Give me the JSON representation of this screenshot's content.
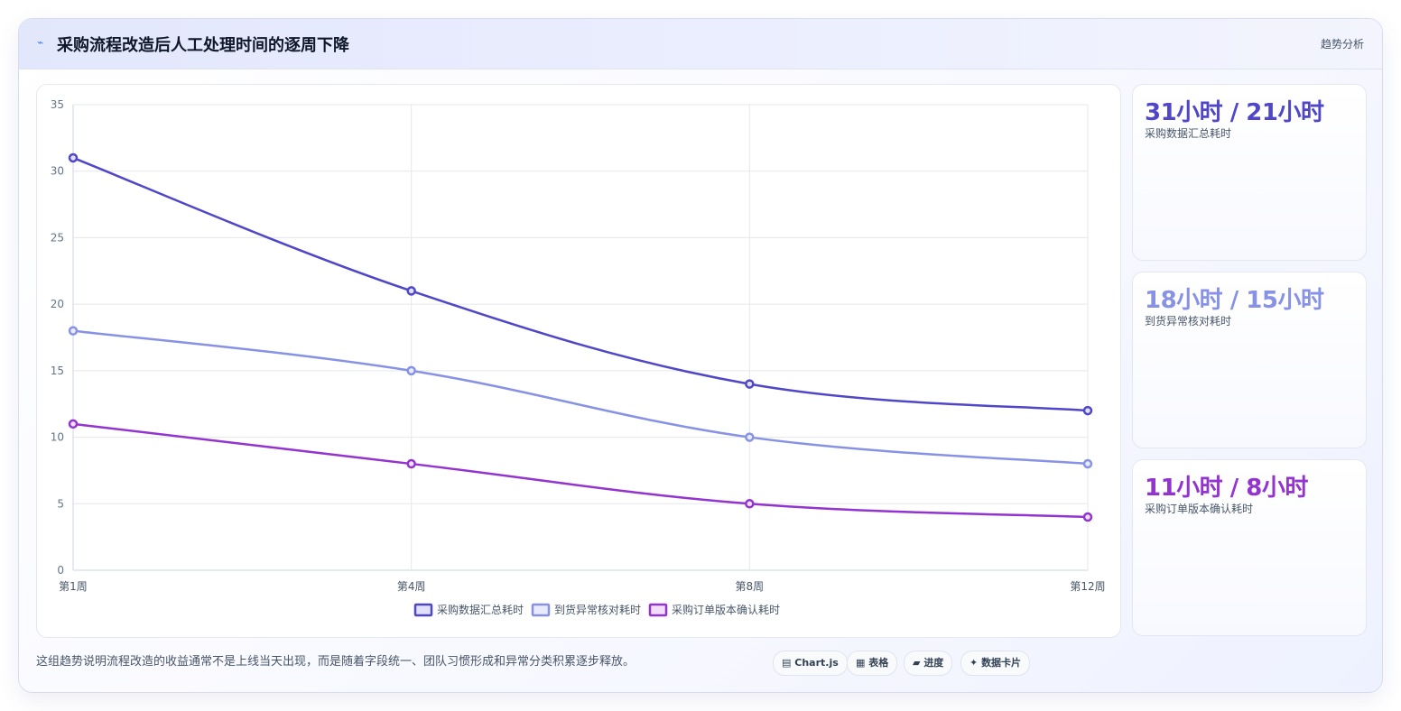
{
  "header": {
    "icon": "chart-icon",
    "title": "采购流程改造后人工处理时间的逐周下降",
    "tag": "趋势分析"
  },
  "chart_data": {
    "type": "line",
    "categories": [
      "第1周",
      "第4周",
      "第8周",
      "第12周"
    ],
    "series": [
      {
        "name": "采购数据汇总耗时",
        "values": [
          31,
          21,
          14,
          12
        ],
        "color": "#4f46c8",
        "fill": "#e0e0f8"
      },
      {
        "name": "到货异常核对耗时",
        "values": [
          18,
          15,
          10,
          8
        ],
        "color": "#8792e6",
        "fill": "#e8ebfb"
      },
      {
        "name": "采购订单版本确认耗时",
        "values": [
          11,
          8,
          5,
          4
        ],
        "color": "#9333d0",
        "fill": "#f1defa"
      }
    ],
    "ylim": [
      0,
      35
    ],
    "yticks": [
      0,
      5,
      10,
      15,
      20,
      25,
      30,
      35
    ],
    "grid": true,
    "legend": "bottom"
  },
  "stats": [
    {
      "value": "31小时 / 21小时",
      "label": "采购数据汇总耗时",
      "color": "#4f46c8"
    },
    {
      "value": "18小时 / 15小时",
      "label": "到货异常核对耗时",
      "color": "#8792e6"
    },
    {
      "value": "11小时 / 8小时",
      "label": "采购订单版本确认耗时",
      "color": "#9333d0"
    }
  ],
  "footnote": "这组趋势说明流程改造的收益通常不是上线当天出现，而是随着字段统一、团队习惯形成和异常分类积累逐步释放。",
  "chips": [
    {
      "icon": "chart-icon",
      "glyph": "▤",
      "label": "Chart.js"
    },
    {
      "icon": "table-icon",
      "glyph": "▦",
      "label": "表格"
    },
    {
      "icon": "progress-icon",
      "glyph": "▰",
      "label": "进度"
    },
    {
      "icon": "sparkle-icon",
      "glyph": "✦",
      "label": "数据卡片"
    }
  ]
}
